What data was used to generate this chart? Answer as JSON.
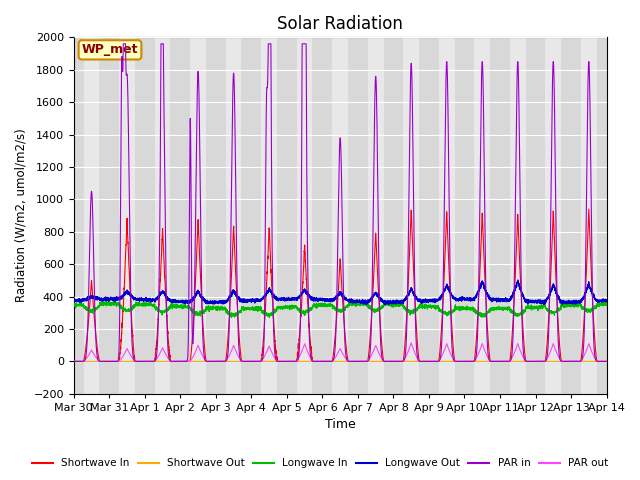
{
  "title": "Solar Radiation",
  "ylabel": "Radiation (W/m2, umol/m2/s)",
  "xlabel": "Time",
  "ylim": [
    -200,
    2000
  ],
  "yticks": [
    -200,
    0,
    200,
    400,
    600,
    800,
    1000,
    1200,
    1400,
    1600,
    1800,
    2000
  ],
  "plot_bg_color": "#e8e8e8",
  "grid_color": "white",
  "annotation_text": "WP_met",
  "annotation_box_color": "#ffffc0",
  "annotation_box_edge": "#cc8800",
  "annotation_text_color": "#880000",
  "series": {
    "shortwave_in": {
      "color": "#ff0000",
      "label": "Shortwave In",
      "lw": 0.8
    },
    "shortwave_out": {
      "color": "#ffaa00",
      "label": "Shortwave Out",
      "lw": 0.8
    },
    "longwave_in": {
      "color": "#00bb00",
      "label": "Longwave In",
      "lw": 0.8
    },
    "longwave_out": {
      "color": "#0000cc",
      "label": "Longwave Out",
      "lw": 1.0
    },
    "par_in": {
      "color": "#9900cc",
      "label": "PAR in",
      "lw": 0.8
    },
    "par_out": {
      "color": "#ff44ff",
      "label": "PAR out",
      "lw": 0.8
    }
  },
  "x_tick_labels": [
    "Mar 30",
    "Mar 31",
    "Apr 1",
    "Apr 2",
    "Apr 3",
    "Apr 4",
    "Apr 5",
    "Apr 6",
    "Apr 7",
    "Apr 8",
    "Apr 9",
    "Apr 10",
    "Apr 11",
    "Apr 12",
    "Apr 13",
    "Apr 14"
  ],
  "n_days": 15,
  "day_band_colors": [
    "#d8d8d8",
    "#e8e8e8"
  ]
}
